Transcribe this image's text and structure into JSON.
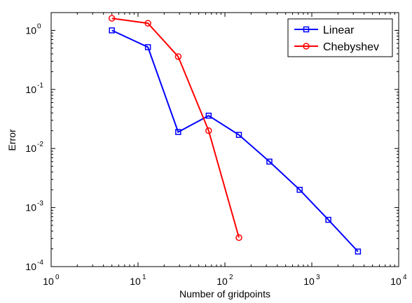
{
  "chart_data": {
    "type": "line",
    "title": "",
    "xlabel": "Number of gridpoints",
    "ylabel": "Error",
    "xscale": "log",
    "yscale": "log",
    "xlim": [
      1,
      10000
    ],
    "ylim": [
      0.0001,
      2
    ],
    "grid": false,
    "legend": "top-right",
    "x_ticks": [
      {
        "value": 1,
        "base": "10",
        "exp": "0"
      },
      {
        "value": 10,
        "base": "10",
        "exp": "1"
      },
      {
        "value": 100,
        "base": "10",
        "exp": "2"
      },
      {
        "value": 1000,
        "base": "10",
        "exp": "3"
      },
      {
        "value": 10000,
        "base": "10",
        "exp": "4"
      }
    ],
    "y_ticks": [
      {
        "value": 0.0001,
        "base": "10",
        "exp": "-4"
      },
      {
        "value": 0.001,
        "base": "10",
        "exp": "-3"
      },
      {
        "value": 0.01,
        "base": "10",
        "exp": "-2"
      },
      {
        "value": 0.1,
        "base": "10",
        "exp": "-1"
      },
      {
        "value": 1,
        "base": "10",
        "exp": "0"
      }
    ],
    "series": [
      {
        "name": "Linear",
        "color": "#0000ff",
        "marker": "square",
        "x": [
          5,
          13,
          29,
          65,
          145,
          325,
          725,
          1550,
          3400
        ],
        "y": [
          1.0,
          0.52,
          0.019,
          0.036,
          0.017,
          0.006,
          0.002,
          0.00062,
          0.00018
        ]
      },
      {
        "name": "Chebyshev",
        "color": "#ff0000",
        "marker": "circle",
        "x": [
          5,
          13,
          29,
          65,
          145
        ],
        "y": [
          1.6,
          1.32,
          0.36,
          0.02,
          0.00031
        ]
      }
    ]
  }
}
